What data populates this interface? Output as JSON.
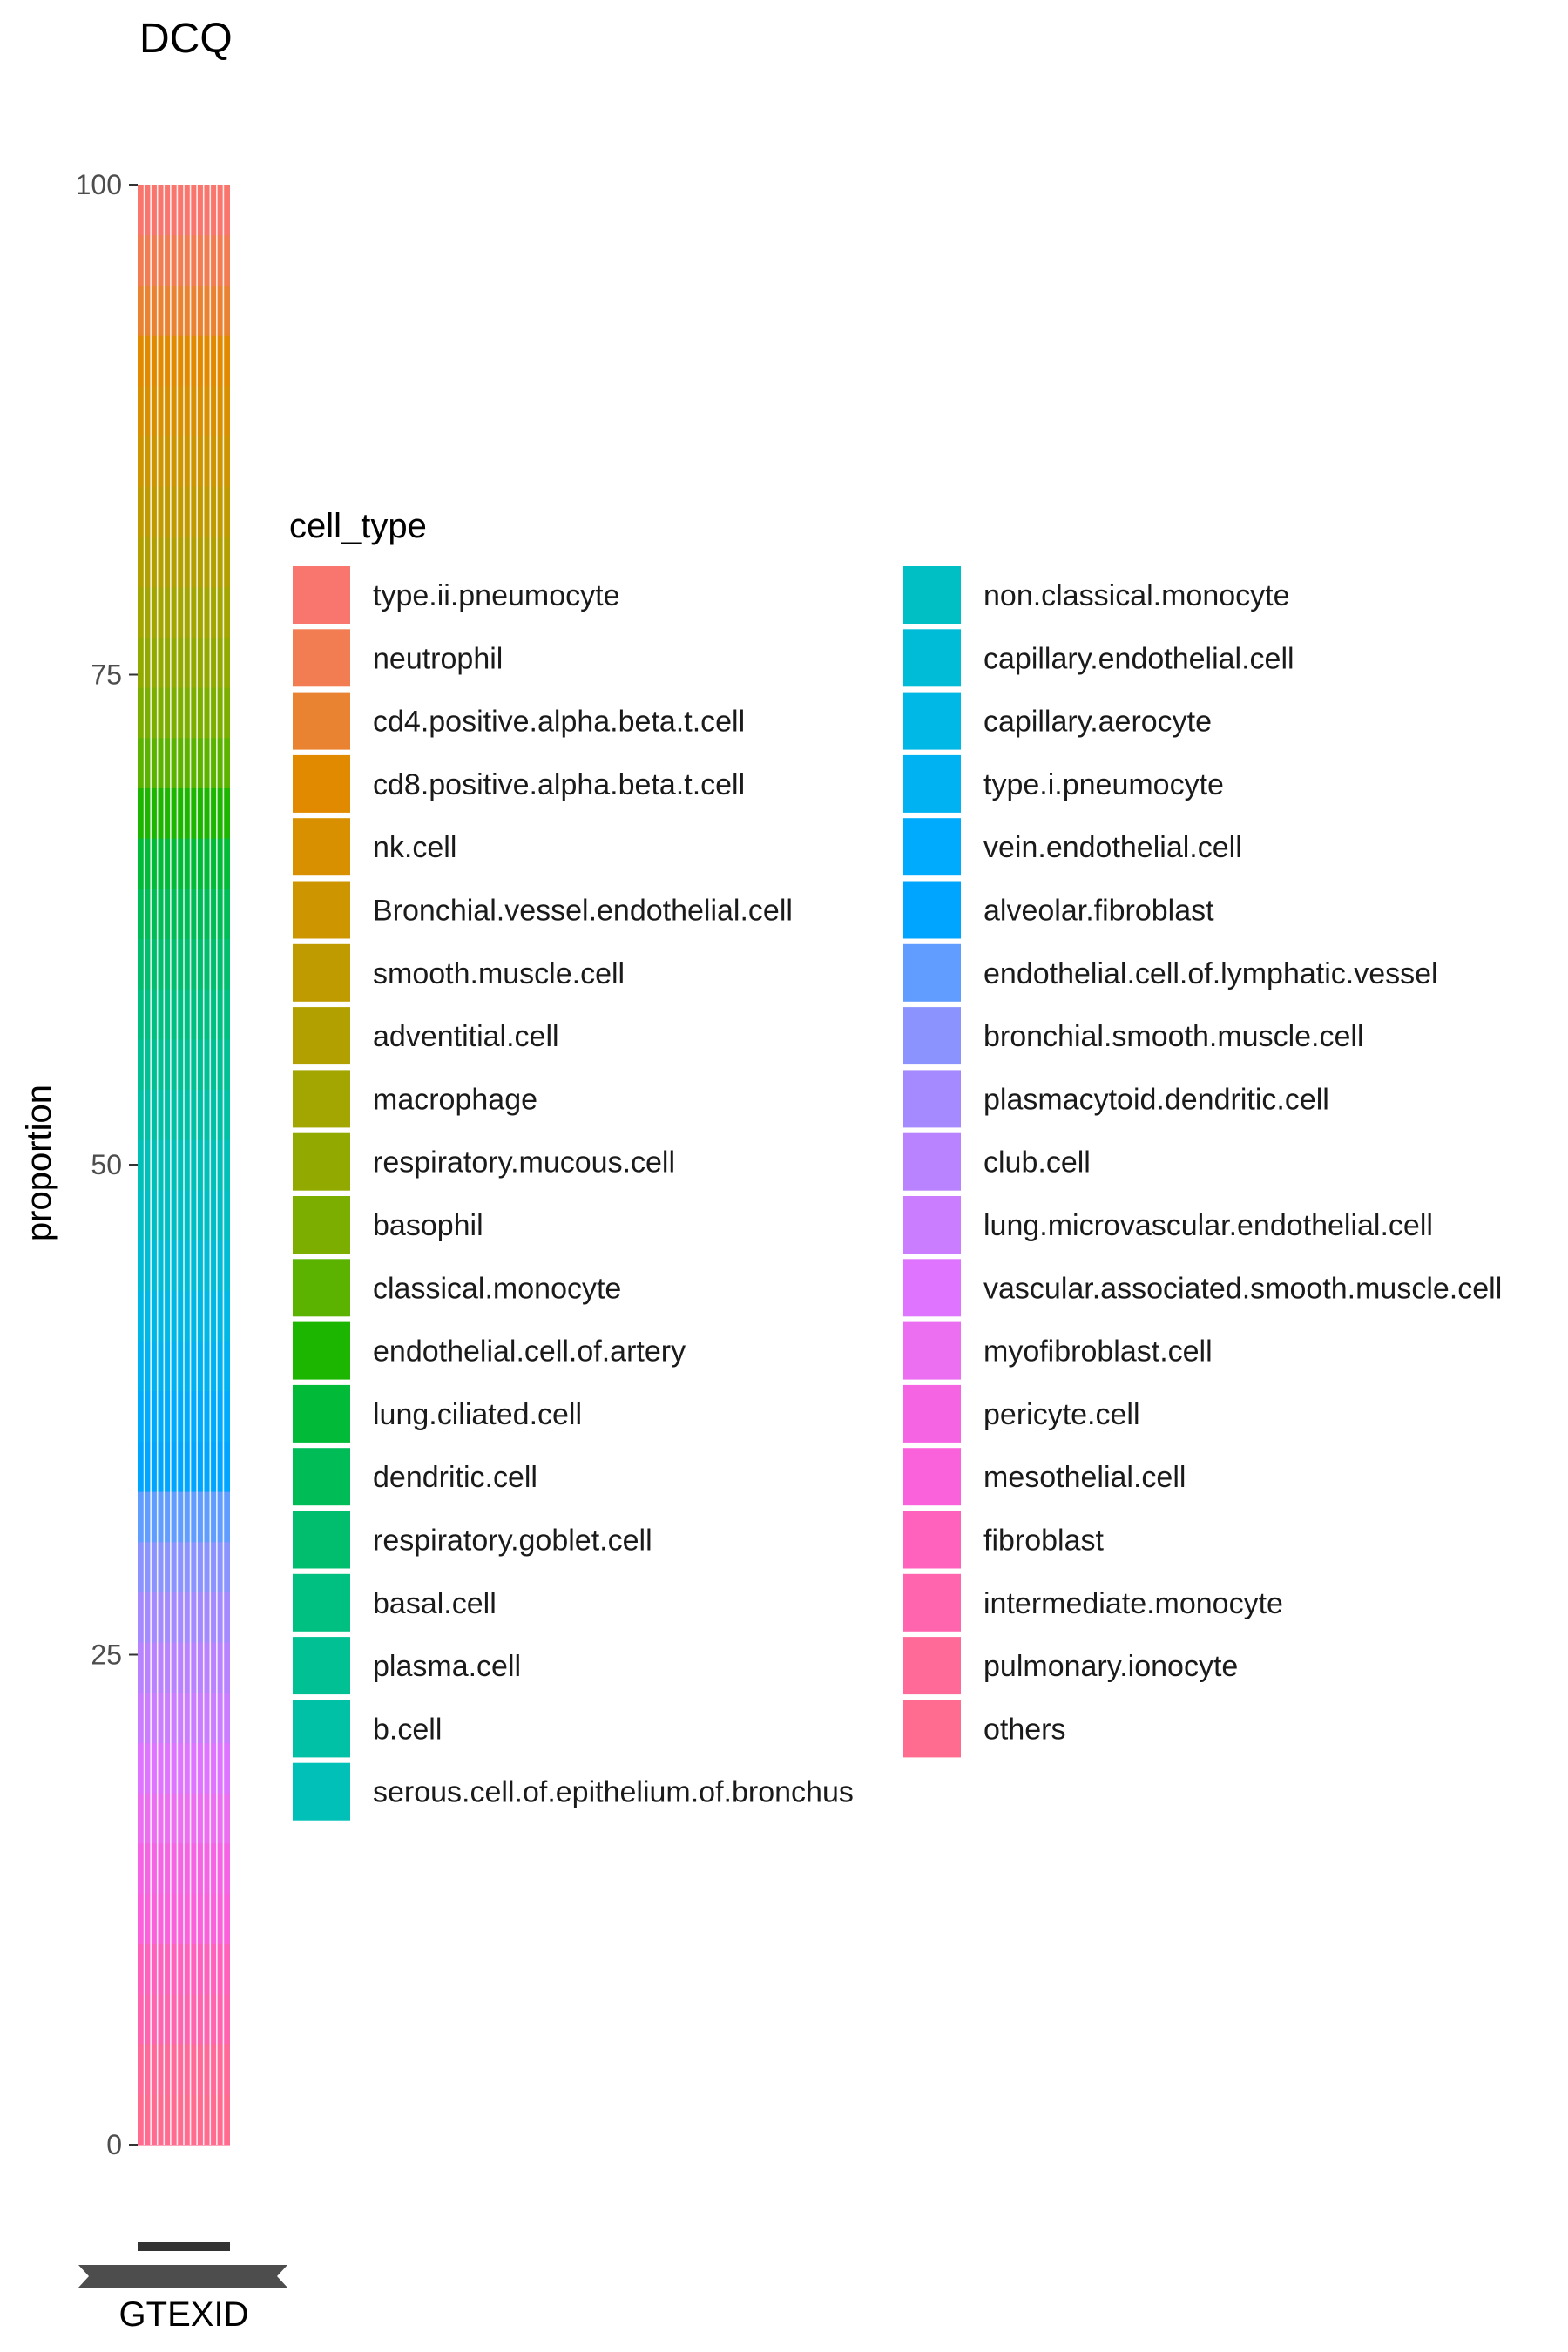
{
  "chart_data": {
    "type": "bar",
    "stacked": true,
    "title": "DCQ",
    "xlabel": "GTEXID",
    "ylabel": "proportion",
    "ylim": [
      0,
      100
    ],
    "yticks": [
      "0",
      "25",
      "50",
      "75",
      "100"
    ],
    "legend_title": "cell_type",
    "legend_position": "right",
    "grid": false,
    "legend": [
      {
        "name": "type.ii.pneumocyte",
        "color": "#F8766D"
      },
      {
        "name": "neutrophil",
        "color": "#F27D52"
      },
      {
        "name": "cd4.positive.alpha.beta.t.cell",
        "color": "#EA8331"
      },
      {
        "name": "cd8.positive.alpha.beta.t.cell",
        "color": "#E18A00"
      },
      {
        "name": "nk.cell",
        "color": "#D89000"
      },
      {
        "name": "Bronchial.vessel.endothelial.cell",
        "color": "#CD9600"
      },
      {
        "name": "smooth.muscle.cell",
        "color": "#C09B00"
      },
      {
        "name": "adventitial.cell",
        "color": "#B2A000"
      },
      {
        "name": "macrophage",
        "color": "#A3A500"
      },
      {
        "name": "respiratory.mucous.cell",
        "color": "#92AA00"
      },
      {
        "name": "basophil",
        "color": "#7CAE00"
      },
      {
        "name": "classical.monocyte",
        "color": "#5BB300"
      },
      {
        "name": "endothelial.cell.of.artery",
        "color": "#1CB600"
      },
      {
        "name": "lung.ciliated.cell",
        "color": "#00BA38"
      },
      {
        "name": "dendritic.cell",
        "color": "#00BC56"
      },
      {
        "name": "respiratory.goblet.cell",
        "color": "#00BE6D"
      },
      {
        "name": "basal.cell",
        "color": "#00C081"
      },
      {
        "name": "plasma.cell",
        "color": "#00C094"
      },
      {
        "name": "b.cell",
        "color": "#00C0A6"
      },
      {
        "name": "serous.cell.of.epithelium.of.bronchus",
        "color": "#00C0B8"
      },
      {
        "name": "non.classical.monocyte",
        "color": "#00BFC4"
      },
      {
        "name": "capillary.endothelial.cell",
        "color": "#00BCD6"
      },
      {
        "name": "capillary.aerocyte",
        "color": "#00B8E5"
      },
      {
        "name": "type.i.pneumocyte",
        "color": "#00B2F2"
      },
      {
        "name": "vein.endothelial.cell",
        "color": "#00ABFD"
      },
      {
        "name": "alveolar.fibroblast",
        "color": "#00A5FF"
      },
      {
        "name": "endothelial.cell.of.lymphatic.vessel",
        "color": "#619CFF"
      },
      {
        "name": "bronchial.smooth.muscle.cell",
        "color": "#8B93FF"
      },
      {
        "name": "plasmacytoid.dendritic.cell",
        "color": "#A58AFF"
      },
      {
        "name": "club.cell",
        "color": "#B983FF"
      },
      {
        "name": "lung.microvascular.endothelial.cell",
        "color": "#CA7DFF"
      },
      {
        "name": "vascular.associated.smooth.muscle.cell",
        "color": "#DE74FF"
      },
      {
        "name": "myofibroblast.cell",
        "color": "#EB6FF0"
      },
      {
        "name": "pericyte.cell",
        "color": "#F464E3"
      },
      {
        "name": "mesothelial.cell",
        "color": "#FA62DB"
      },
      {
        "name": "fibroblast",
        "color": "#FF62BC"
      },
      {
        "name": "intermediate.monocyte",
        "color": "#FF65AE"
      },
      {
        "name": "pulmonary.ionocyte",
        "color": "#FF6A98"
      },
      {
        "name": "others",
        "color": "#FF6C90"
      }
    ],
    "sample_count": 14,
    "composition_note_values": [
      {
        "name": "type.ii.pneumocyte",
        "value": 2.6
      },
      {
        "name": "neutrophil",
        "value": 2.6
      },
      {
        "name": "cd4.positive.alpha.beta.t.cell",
        "value": 2.6
      },
      {
        "name": "cd8.positive.alpha.beta.t.cell",
        "value": 2.6
      },
      {
        "name": "nk.cell",
        "value": 2.6
      },
      {
        "name": "Bronchial.vessel.endothelial.cell",
        "value": 2.6
      },
      {
        "name": "smooth.muscle.cell",
        "value": 2.6
      },
      {
        "name": "adventitial.cell",
        "value": 2.6
      },
      {
        "name": "macrophage",
        "value": 2.6
      },
      {
        "name": "respiratory.mucous.cell",
        "value": 2.6
      },
      {
        "name": "basophil",
        "value": 2.6
      },
      {
        "name": "classical.monocyte",
        "value": 2.6
      },
      {
        "name": "endothelial.cell.of.artery",
        "value": 2.6
      },
      {
        "name": "lung.ciliated.cell",
        "value": 2.6
      },
      {
        "name": "dendritic.cell",
        "value": 2.6
      },
      {
        "name": "respiratory.goblet.cell",
        "value": 2.6
      },
      {
        "name": "basal.cell",
        "value": 2.6
      },
      {
        "name": "plasma.cell",
        "value": 2.6
      },
      {
        "name": "b.cell",
        "value": 2.6
      },
      {
        "name": "serous.cell.of.epithelium.of.bronchus",
        "value": 2.6
      },
      {
        "name": "non.classical.monocyte",
        "value": 2.6
      },
      {
        "name": "capillary.endothelial.cell",
        "value": 2.6
      },
      {
        "name": "capillary.aerocyte",
        "value": 2.6
      },
      {
        "name": "type.i.pneumocyte",
        "value": 2.6
      },
      {
        "name": "vein.endothelial.cell",
        "value": 2.6
      },
      {
        "name": "alveolar.fibroblast",
        "value": 2.6
      },
      {
        "name": "endothelial.cell.of.lymphatic.vessel",
        "value": 2.6
      },
      {
        "name": "bronchial.smooth.muscle.cell",
        "value": 2.6
      },
      {
        "name": "plasmacytoid.dendritic.cell",
        "value": 2.6
      },
      {
        "name": "club.cell",
        "value": 2.6
      },
      {
        "name": "lung.microvascular.endothelial.cell",
        "value": 2.6
      },
      {
        "name": "vascular.associated.smooth.muscle.cell",
        "value": 2.6
      },
      {
        "name": "myofibroblast.cell",
        "value": 2.6
      },
      {
        "name": "pericyte.cell",
        "value": 2.6
      },
      {
        "name": "mesothelial.cell",
        "value": 2.6
      },
      {
        "name": "fibroblast",
        "value": 2.6
      },
      {
        "name": "intermediate.monocyte",
        "value": 2.6
      },
      {
        "name": "pulmonary.ionocyte",
        "value": 2.6
      },
      {
        "name": "others",
        "value": 2.6
      }
    ]
  }
}
